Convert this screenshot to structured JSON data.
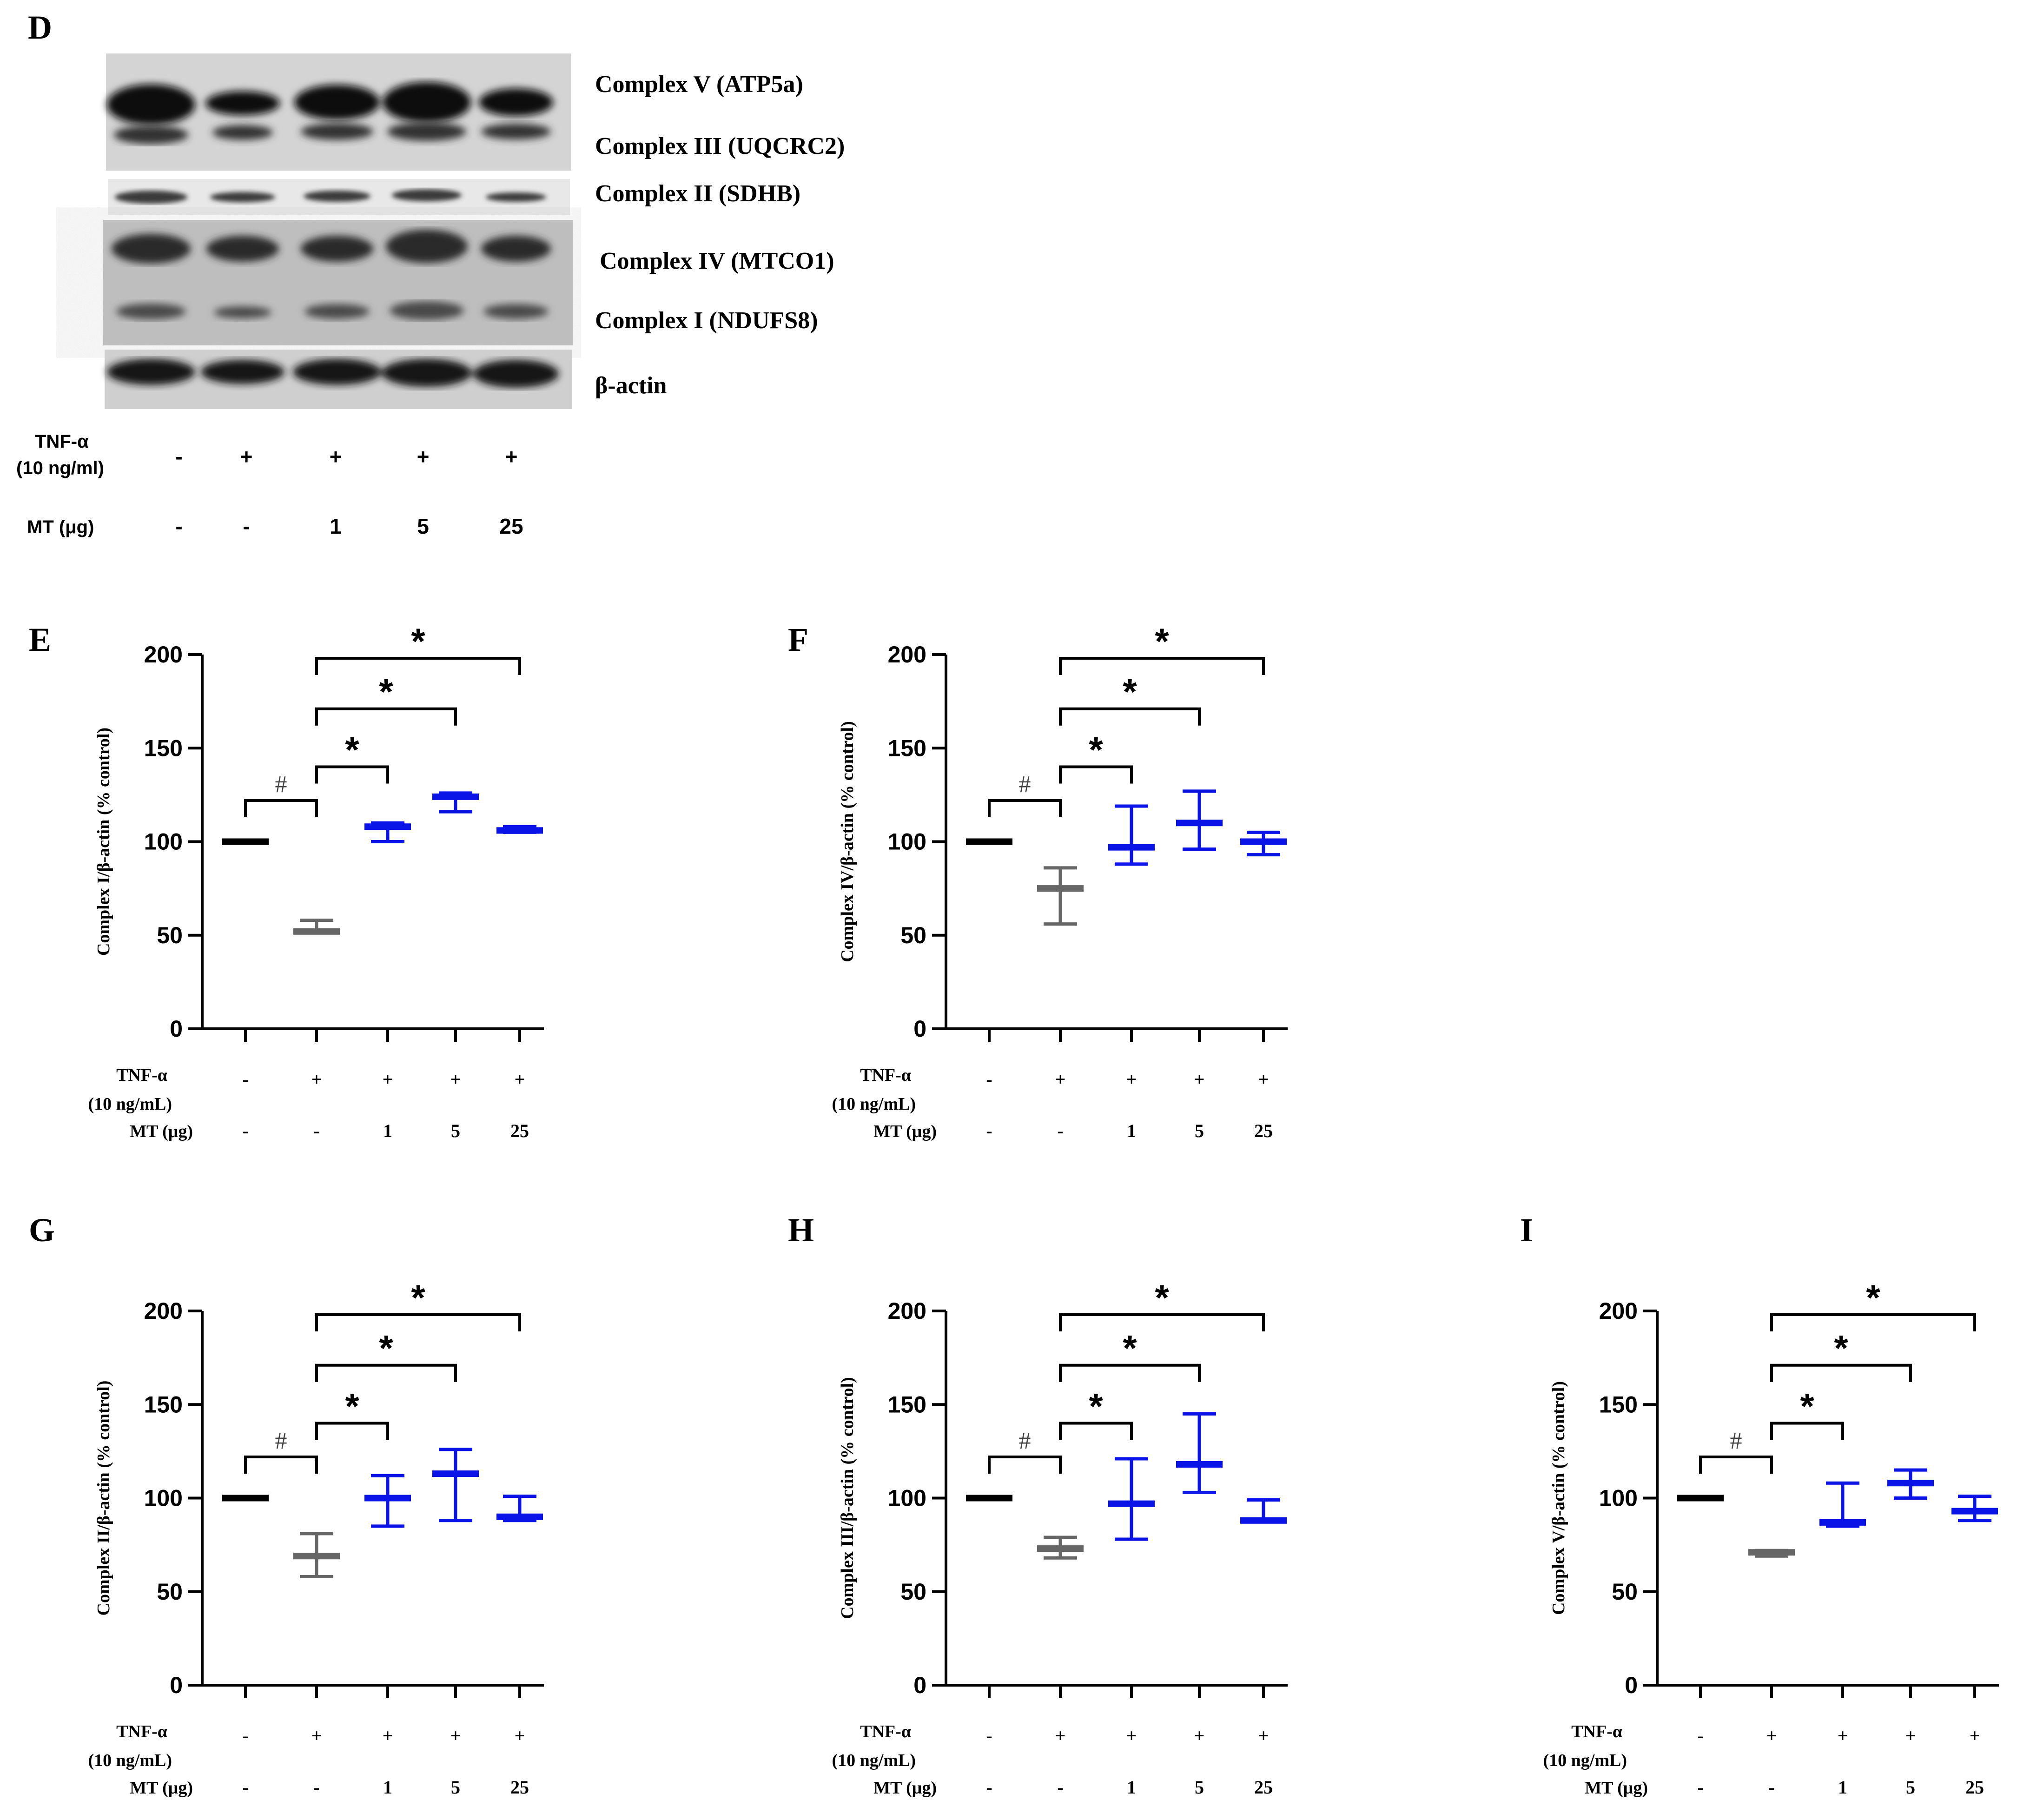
{
  "figure": {
    "panel_letters": [
      "D",
      "E",
      "F",
      "G",
      "H",
      "I"
    ]
  },
  "blot": {
    "labels": [
      "Complex V (ATP5a)",
      "Complex III (UQCRC2)",
      "Complex II (SDHB)",
      "Complex IV (MTCO1)",
      "Complex I (NDUFS8)",
      "β-actin"
    ],
    "row1_label": "TNF-α",
    "row1_sub": "(10 ng/ml)",
    "row1_values": [
      "-",
      "+",
      "+",
      "+",
      "+"
    ],
    "row2_label": "MT (μg)",
    "row2_values": [
      "-",
      "-",
      "1",
      "5",
      "25"
    ]
  },
  "chart_data": [
    {
      "panel": "E",
      "type": "scatter",
      "ylabel": "Complex I/β-actin (% control)",
      "ylim": [
        0,
        200
      ],
      "yticks": [
        0,
        50,
        100,
        150,
        200
      ],
      "row1_label": "TNF-α",
      "row1_sub": "(10 ng/mL)",
      "row1_values": [
        "-",
        "+",
        "+",
        "+",
        "+"
      ],
      "row2_label": "MT (μg)",
      "row2_values": [
        "-",
        "-",
        "1",
        "5",
        "25"
      ],
      "groups": [
        {
          "mean": 100,
          "low": 100,
          "high": 100,
          "color": "#000000"
        },
        {
          "mean": 52,
          "low": 52,
          "high": 58,
          "color": "#666666"
        },
        {
          "mean": 108,
          "low": 100,
          "high": 110,
          "color": "#0a14e6"
        },
        {
          "mean": 124,
          "low": 116,
          "high": 126,
          "color": "#0a14e6"
        },
        {
          "mean": 106,
          "low": 105,
          "high": 108,
          "color": "#0a14e6"
        }
      ],
      "brackets": [
        {
          "from": 0,
          "to": 1,
          "y": 122,
          "label": "#"
        },
        {
          "from": 1,
          "to": 2,
          "y": 140,
          "label": "*"
        },
        {
          "from": 1,
          "to": 3,
          "y": 171,
          "label": "*"
        },
        {
          "from": 1,
          "to": 4,
          "y": 198,
          "label": "*"
        }
      ]
    },
    {
      "panel": "F",
      "type": "scatter",
      "ylabel": "Complex IV/β-actin (% control)",
      "ylim": [
        0,
        200
      ],
      "yticks": [
        0,
        50,
        100,
        150,
        200
      ],
      "row1_label": "TNF-α",
      "row1_sub": "(10 ng/mL)",
      "row1_values": [
        "-",
        "+",
        "+",
        "+",
        "+"
      ],
      "row2_label": "MT (μg)",
      "row2_values": [
        "-",
        "-",
        "1",
        "5",
        "25"
      ],
      "groups": [
        {
          "mean": 100,
          "low": 100,
          "high": 100,
          "color": "#000000"
        },
        {
          "mean": 75,
          "low": 56,
          "high": 86,
          "color": "#666666"
        },
        {
          "mean": 97,
          "low": 88,
          "high": 119,
          "color": "#0a14e6"
        },
        {
          "mean": 110,
          "low": 96,
          "high": 127,
          "color": "#0a14e6"
        },
        {
          "mean": 100,
          "low": 93,
          "high": 105,
          "color": "#0a14e6"
        }
      ],
      "brackets": [
        {
          "from": 0,
          "to": 1,
          "y": 122,
          "label": "#"
        },
        {
          "from": 1,
          "to": 2,
          "y": 140,
          "label": "*"
        },
        {
          "from": 1,
          "to": 3,
          "y": 171,
          "label": "*"
        },
        {
          "from": 1,
          "to": 4,
          "y": 198,
          "label": "*"
        }
      ]
    },
    {
      "panel": "G",
      "type": "scatter",
      "ylabel": "Complex II/β-actin (% control)",
      "ylim": [
        0,
        200
      ],
      "yticks": [
        0,
        50,
        100,
        150,
        200
      ],
      "row1_label": "TNF-α",
      "row1_sub": "(10 ng/mL)",
      "row1_values": [
        "-",
        "+",
        "+",
        "+",
        "+"
      ],
      "row2_label": "MT (μg)",
      "row2_values": [
        "-",
        "-",
        "1",
        "5",
        "25"
      ],
      "groups": [
        {
          "mean": 100,
          "low": 100,
          "high": 100,
          "color": "#000000"
        },
        {
          "mean": 69,
          "low": 58,
          "high": 81,
          "color": "#666666"
        },
        {
          "mean": 100,
          "low": 85,
          "high": 112,
          "color": "#0a14e6"
        },
        {
          "mean": 113,
          "low": 88,
          "high": 126,
          "color": "#0a14e6"
        },
        {
          "mean": 90,
          "low": 88,
          "high": 101,
          "color": "#0a14e6"
        }
      ],
      "brackets": [
        {
          "from": 0,
          "to": 1,
          "y": 122,
          "label": "#"
        },
        {
          "from": 1,
          "to": 2,
          "y": 140,
          "label": "*"
        },
        {
          "from": 1,
          "to": 3,
          "y": 171,
          "label": "*"
        },
        {
          "from": 1,
          "to": 4,
          "y": 198,
          "label": "*"
        }
      ]
    },
    {
      "panel": "H",
      "type": "scatter",
      "ylabel": "Complex III/β-actin (% control)",
      "ylim": [
        0,
        200
      ],
      "yticks": [
        0,
        50,
        100,
        150,
        200
      ],
      "row1_label": "TNF-α",
      "row1_sub": "(10 ng/mL)",
      "row1_values": [
        "-",
        "+",
        "+",
        "+",
        "+"
      ],
      "row2_label": "MT (μg)",
      "row2_values": [
        "-",
        "-",
        "1",
        "5",
        "25"
      ],
      "groups": [
        {
          "mean": 100,
          "low": 100,
          "high": 100,
          "color": "#000000"
        },
        {
          "mean": 73,
          "low": 68,
          "high": 79,
          "color": "#666666"
        },
        {
          "mean": 97,
          "low": 78,
          "high": 121,
          "color": "#0a14e6"
        },
        {
          "mean": 118,
          "low": 103,
          "high": 145,
          "color": "#0a14e6"
        },
        {
          "mean": 88,
          "low": 88,
          "high": 99,
          "color": "#0a14e6"
        }
      ],
      "brackets": [
        {
          "from": 0,
          "to": 1,
          "y": 122,
          "label": "#"
        },
        {
          "from": 1,
          "to": 2,
          "y": 140,
          "label": "*"
        },
        {
          "from": 1,
          "to": 3,
          "y": 171,
          "label": "*"
        },
        {
          "from": 1,
          "to": 4,
          "y": 198,
          "label": "*"
        }
      ]
    },
    {
      "panel": "I",
      "type": "scatter",
      "ylabel": "Complex V/β-actin (% control)",
      "ylim": [
        0,
        200
      ],
      "yticks": [
        0,
        50,
        100,
        150,
        200
      ],
      "row1_label": "TNF-α",
      "row1_sub": "(10 ng/mL)",
      "row1_values": [
        "-",
        "+",
        "+",
        "+",
        "+"
      ],
      "row2_label": "MT (μg)",
      "row2_values": [
        "-",
        "-",
        "1",
        "5",
        "25"
      ],
      "groups": [
        {
          "mean": 100,
          "low": 100,
          "high": 100,
          "color": "#000000"
        },
        {
          "mean": 71,
          "low": 69,
          "high": 72,
          "color": "#666666"
        },
        {
          "mean": 87,
          "low": 85,
          "high": 108,
          "color": "#0a14e6"
        },
        {
          "mean": 108,
          "low": 100,
          "high": 115,
          "color": "#0a14e6"
        },
        {
          "mean": 93,
          "low": 88,
          "high": 101,
          "color": "#0a14e6"
        }
      ],
      "brackets": [
        {
          "from": 0,
          "to": 1,
          "y": 122,
          "label": "#"
        },
        {
          "from": 1,
          "to": 2,
          "y": 140,
          "label": "*"
        },
        {
          "from": 1,
          "to": 3,
          "y": 171,
          "label": "*"
        },
        {
          "from": 1,
          "to": 4,
          "y": 198,
          "label": "*"
        }
      ]
    }
  ]
}
